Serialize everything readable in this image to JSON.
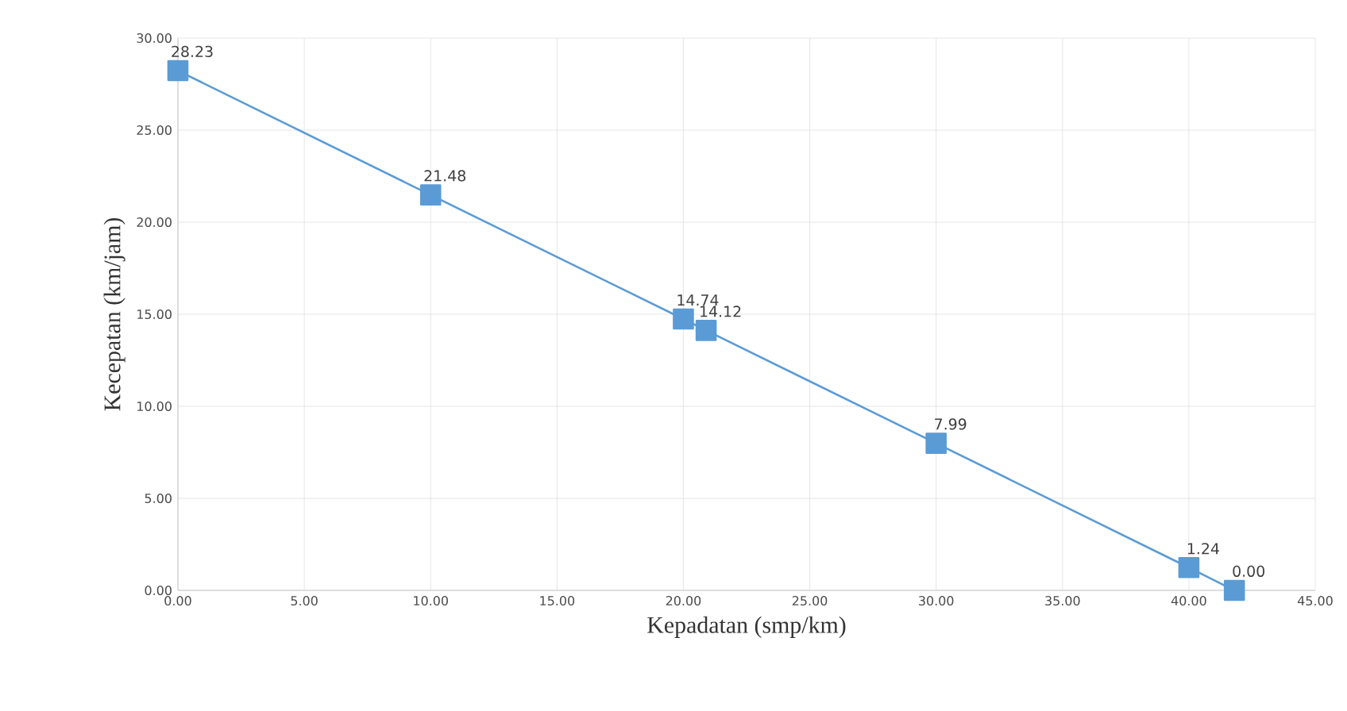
{
  "chart_data": {
    "type": "line",
    "xlabel": "Kepadatan (smp/km)",
    "ylabel": "Kecepatan (km/jam)",
    "x": [
      0,
      10,
      20,
      20.9,
      30,
      40,
      41.8
    ],
    "series": [
      {
        "color": "#5b9bd5",
        "values": [
          28.23,
          21.48,
          14.74,
          14.12,
          7.99,
          1.24,
          0
        ],
        "value_labels": [
          "28.23",
          "21.48",
          "14.74",
          "14.12",
          "7.99",
          "1.24",
          "0.00"
        ]
      }
    ],
    "xlim": [
      0,
      45
    ],
    "ylim": [
      0,
      30
    ],
    "xticks": [
      {
        "value": 0,
        "label": "0.00"
      },
      {
        "value": 5,
        "label": "5.00"
      },
      {
        "value": 10,
        "label": "10.00"
      },
      {
        "value": 15,
        "label": "15.00"
      },
      {
        "value": 20,
        "label": "20.00"
      },
      {
        "value": 25,
        "label": "25.00"
      },
      {
        "value": 30,
        "label": "30.00"
      },
      {
        "value": 35,
        "label": "35.00"
      },
      {
        "value": 40,
        "label": "40.00"
      },
      {
        "value": 45,
        "label": "45.00"
      }
    ],
    "yticks": [
      {
        "value": 0,
        "label": "0.00"
      },
      {
        "value": 5,
        "label": "5.00"
      },
      {
        "value": 10,
        "label": "10.00"
      },
      {
        "value": 15,
        "label": "15.00"
      },
      {
        "value": 20,
        "label": "20.00"
      },
      {
        "value": 25,
        "label": "25.00"
      },
      {
        "value": 30,
        "label": "30.00"
      }
    ],
    "grid": true,
    "marker": "square",
    "line_style": "solid"
  }
}
